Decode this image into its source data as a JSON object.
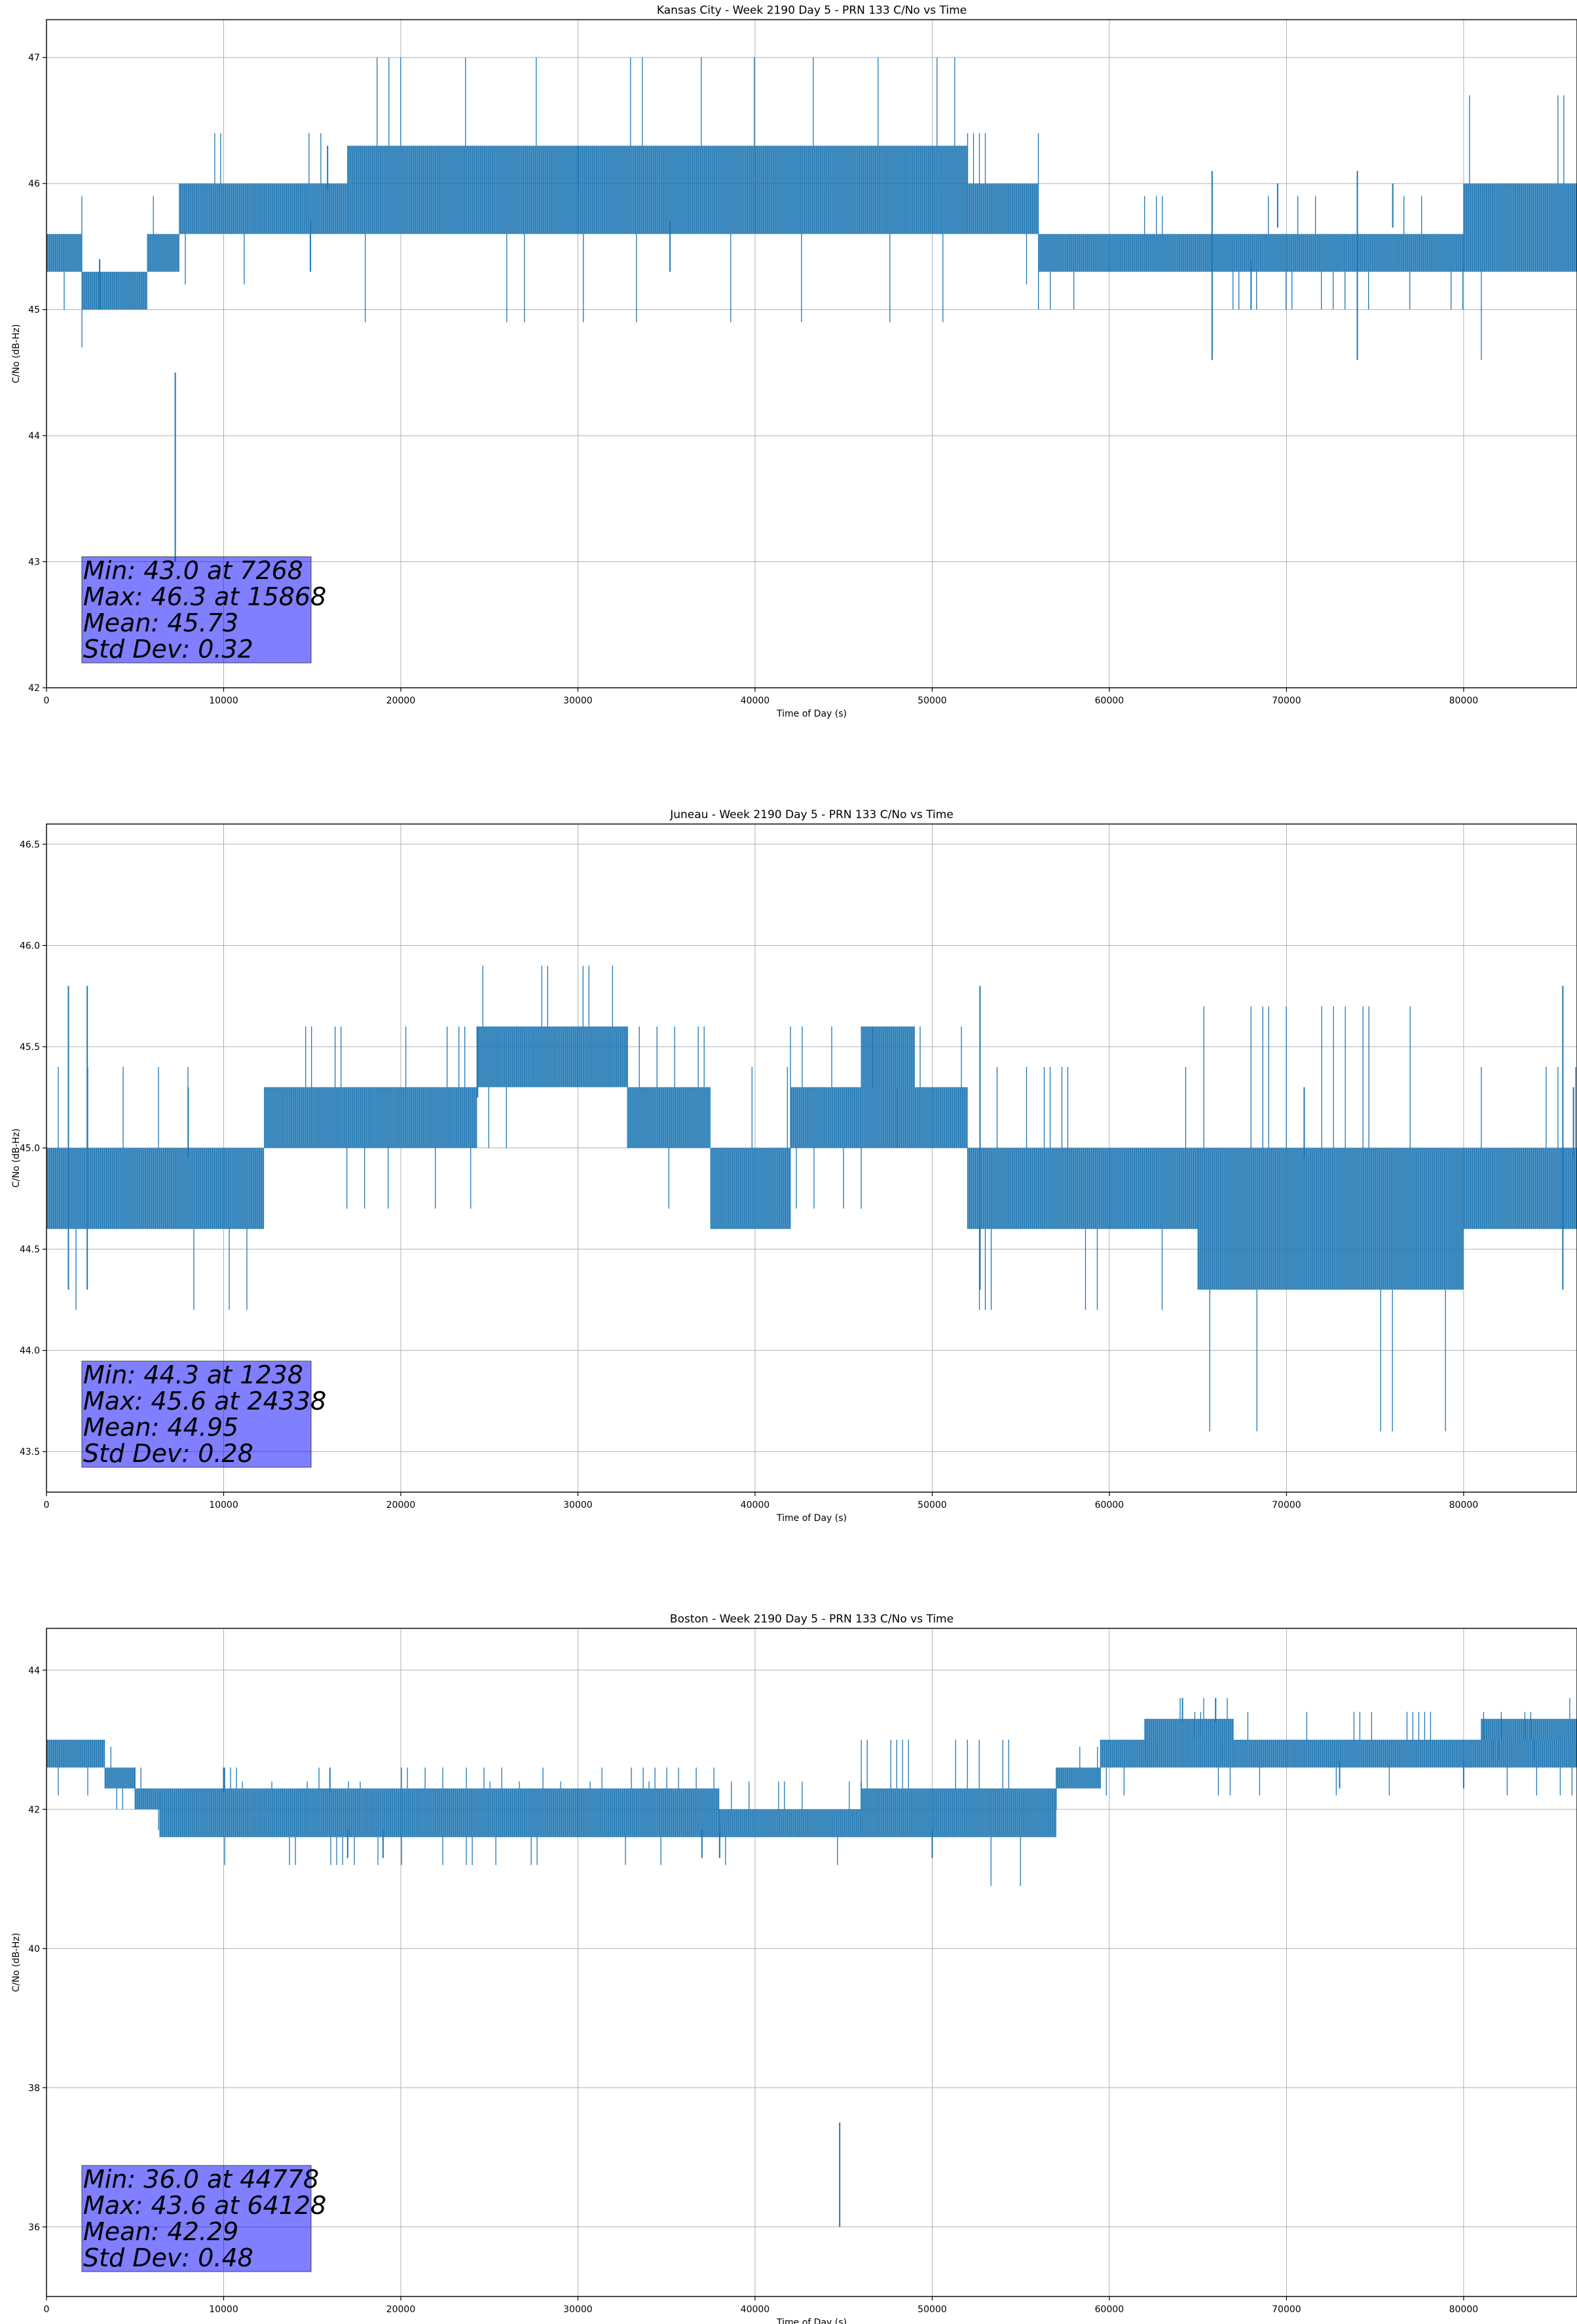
{
  "chart_data": [
    {
      "type": "line",
      "title": "Kansas City - Week 2190 Day 5 - PRN 133 C/No vs Time",
      "xlabel": "Time of Day (s)",
      "ylabel": "C/No (dB-Hz)",
      "xlim": [
        0,
        86400
      ],
      "ylim": [
        42,
        47.3
      ],
      "xticks": [
        0,
        10000,
        20000,
        30000,
        40000,
        50000,
        60000,
        70000,
        80000
      ],
      "yticks": [
        42,
        43,
        44,
        45,
        46,
        47
      ],
      "grid": true,
      "color": "#1f77b4",
      "stats": [
        "Min: 43.0 at 7268",
        "Max: 46.3 at 15868",
        "Mean: 45.73",
        "Std Dev: 0.32"
      ],
      "segments": [
        {
          "x": [
            0,
            2000
          ],
          "low": 45.3,
          "high": 45.6
        },
        {
          "x": [
            2000,
            5700
          ],
          "low": 45.0,
          "high": 45.3
        },
        {
          "x": [
            5700,
            7500
          ],
          "low": 45.3,
          "high": 45.6
        },
        {
          "x": [
            7500,
            17000
          ],
          "low": 45.6,
          "high": 46.0
        },
        {
          "x": [
            17000,
            52000
          ],
          "low": 45.6,
          "high": 46.3
        },
        {
          "x": [
            52000,
            56000
          ],
          "low": 45.6,
          "high": 46.0
        },
        {
          "x": [
            56000,
            80000
          ],
          "low": 45.3,
          "high": 45.6
        },
        {
          "x": [
            80000,
            86400
          ],
          "low": 45.3,
          "high": 46.0
        }
      ],
      "dips": [
        {
          "x": 7268,
          "y": 43.0
        },
        {
          "x": 65800,
          "y": 44.6
        },
        {
          "x": 74000,
          "y": 44.6
        },
        {
          "x": 14900,
          "y": 45.3
        },
        {
          "x": 35200,
          "y": 45.3
        },
        {
          "x": 3000,
          "y": 45.0
        },
        {
          "x": 68000,
          "y": 45.0
        }
      ],
      "spikes": [
        {
          "x": 15868,
          "y": 46.3
        },
        {
          "x": 30000,
          "y": 46.3
        },
        {
          "x": 69500,
          "y": 46.0
        },
        {
          "x": 76000,
          "y": 46.0
        }
      ]
    },
    {
      "type": "line",
      "title": "Juneau - Week 2190 Day 5 - PRN 133 C/No vs Time",
      "xlabel": "Time of Day (s)",
      "ylabel": "C/No (dB-Hz)",
      "xlim": [
        0,
        86400
      ],
      "ylim": [
        43.3,
        46.6
      ],
      "xticks": [
        0,
        10000,
        20000,
        30000,
        40000,
        50000,
        60000,
        70000,
        80000
      ],
      "yticks": [
        43.5,
        44.0,
        44.5,
        45.0,
        45.5,
        46.0,
        46.5
      ],
      "grid": true,
      "color": "#1f77b4",
      "stats": [
        "Min: 44.3 at 1238",
        "Max: 45.6 at 24338",
        "Mean: 44.95",
        "Std Dev: 0.28"
      ],
      "segments": [
        {
          "x": [
            0,
            12300
          ],
          "low": 44.6,
          "high": 45.0
        },
        {
          "x": [
            12300,
            24300
          ],
          "low": 45.0,
          "high": 45.3
        },
        {
          "x": [
            24300,
            32800
          ],
          "low": 45.3,
          "high": 45.6
        },
        {
          "x": [
            32800,
            37500
          ],
          "low": 45.0,
          "high": 45.3
        },
        {
          "x": [
            37500,
            42000
          ],
          "low": 44.6,
          "high": 45.0
        },
        {
          "x": [
            42000,
            52000
          ],
          "low": 45.0,
          "high": 45.3
        },
        {
          "x": [
            46000,
            49000
          ],
          "low": 45.3,
          "high": 45.6
        },
        {
          "x": [
            52000,
            65000
          ],
          "low": 44.6,
          "high": 45.0
        },
        {
          "x": [
            65000,
            80000
          ],
          "low": 44.3,
          "high": 45.0
        },
        {
          "x": [
            80000,
            86400
          ],
          "low": 44.6,
          "high": 45.0
        }
      ],
      "dips": [
        {
          "x": 1238,
          "y": 44.3
        },
        {
          "x": 2300,
          "y": 44.3
        },
        {
          "x": 52700,
          "y": 44.3
        },
        {
          "x": 85600,
          "y": 44.3
        }
      ],
      "spikes": [
        {
          "x": 8000,
          "y": 45.3
        },
        {
          "x": 24338,
          "y": 45.6
        },
        {
          "x": 71000,
          "y": 45.3
        },
        {
          "x": 86200,
          "y": 45.3
        }
      ]
    },
    {
      "type": "line",
      "title": "Boston - Week 2190 Day 5 - PRN 133 C/No vs Time",
      "xlabel": "Time of Day (s)",
      "ylabel": "C/No (dB-Hz)",
      "xlim": [
        0,
        86400
      ],
      "ylim": [
        35,
        44.6
      ],
      "xticks": [
        0,
        10000,
        20000,
        30000,
        40000,
        50000,
        60000,
        70000,
        80000
      ],
      "yticks": [
        36,
        38,
        40,
        42,
        44
      ],
      "grid": true,
      "color": "#1f77b4",
      "stats": [
        "Min: 36.0 at 44778",
        "Max: 43.6 at 64128",
        "Mean: 42.29",
        "Std Dev: 0.48"
      ],
      "segments": [
        {
          "x": [
            0,
            3300
          ],
          "low": 42.6,
          "high": 43.0
        },
        {
          "x": [
            3300,
            5000
          ],
          "low": 42.3,
          "high": 42.6
        },
        {
          "x": [
            5000,
            6400
          ],
          "low": 42.0,
          "high": 42.3
        },
        {
          "x": [
            6400,
            38000
          ],
          "low": 41.6,
          "high": 42.0
        },
        {
          "x": [
            6400,
            38000
          ],
          "low": 42.0,
          "high": 42.3
        },
        {
          "x": [
            38000,
            46000
          ],
          "low": 41.6,
          "high": 42.0
        },
        {
          "x": [
            46000,
            57000
          ],
          "low": 41.6,
          "high": 42.3
        },
        {
          "x": [
            57000,
            59500
          ],
          "low": 42.3,
          "high": 42.6
        },
        {
          "x": [
            59500,
            86400
          ],
          "low": 42.6,
          "high": 43.0
        },
        {
          "x": [
            62000,
            67000
          ],
          "low": 43.0,
          "high": 43.3
        },
        {
          "x": [
            81000,
            86400
          ],
          "low": 43.0,
          "high": 43.3
        }
      ],
      "dips": [
        {
          "x": 44778,
          "y": 36.0
        },
        {
          "x": 17000,
          "y": 41.3
        },
        {
          "x": 19000,
          "y": 41.3
        },
        {
          "x": 37000,
          "y": 41.3
        },
        {
          "x": 38000,
          "y": 41.3
        },
        {
          "x": 50000,
          "y": 41.3
        },
        {
          "x": 73000,
          "y": 42.3
        },
        {
          "x": 80000,
          "y": 42.3
        }
      ],
      "spikes": [
        {
          "x": 64128,
          "y": 43.6
        },
        {
          "x": 66000,
          "y": 43.6
        },
        {
          "x": 10000,
          "y": 42.6
        },
        {
          "x": 16000,
          "y": 42.6
        }
      ]
    }
  ]
}
